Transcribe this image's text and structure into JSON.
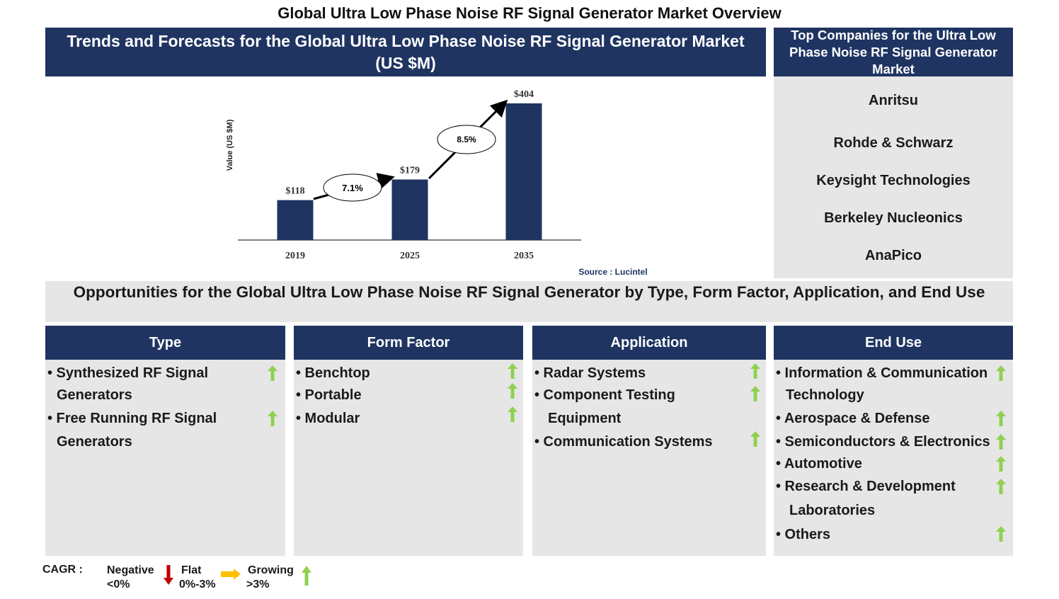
{
  "title": "Global Ultra Low Phase Noise RF Signal Generator Market Overview",
  "trend_header": "Trends and Forecasts for the Global Ultra Low Phase Noise RF Signal Generator Market (US $M)",
  "top_companies": {
    "header": "Top Companies for the Ultra Low Phase Noise RF Signal Generator Market",
    "items": [
      "Anritsu",
      "Rohde & Schwarz",
      "Keysight Technologies",
      "Berkeley Nucleonics",
      "AnaPico"
    ]
  },
  "chart_data": {
    "type": "bar",
    "categories": [
      "2019",
      "2025",
      "2035"
    ],
    "values": [
      118,
      179,
      404
    ],
    "value_labels": [
      "$118",
      "$179",
      "$404"
    ],
    "ylabel": "Value (US $M)",
    "cagr": [
      "7.1%",
      "8.5%"
    ],
    "source": "Source : Lucintel",
    "bar_color": "#1f3461"
  },
  "opportunities": {
    "header": "Opportunities for the Global Ultra Low Phase Noise RF Signal Generator by Type, Form Factor, Application, and End Use",
    "columns": [
      {
        "title": "Type",
        "items": [
          "• Synthesized RF Signal",
          "Generators",
          "• Free Running RF Signal",
          "Generators"
        ]
      },
      {
        "title": "Form Factor",
        "items": [
          "• Benchtop",
          "• Portable",
          "• Modular"
        ]
      },
      {
        "title": "Application",
        "items": [
          "• Radar Systems",
          "• Component Testing",
          "Equipment",
          "• Communication Systems"
        ]
      },
      {
        "title": "End Use",
        "items": [
          "• Information & Communication",
          "Technology",
          "• Aerospace & Defense",
          "• Semiconductors & Electronics",
          "• Automotive",
          "• Research & Development",
          "Laboratories",
          "• Others"
        ]
      }
    ]
  },
  "legend": {
    "cagr_label": "CAGR :",
    "negative": [
      "Negative",
      "<0%"
    ],
    "flat": [
      "Flat",
      "0%-3%"
    ],
    "growing": [
      "Growing",
      ">3%"
    ],
    "colors": {
      "negative": "#c00000",
      "flat": "#ffc000",
      "growing": "#8fd14f"
    }
  }
}
